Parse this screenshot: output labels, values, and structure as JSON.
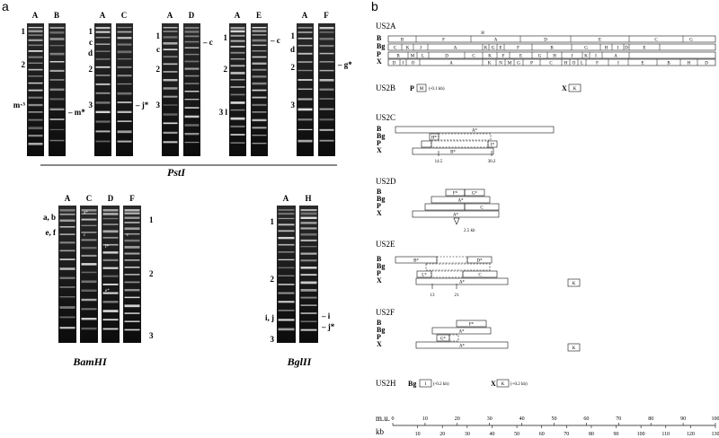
{
  "panel_a": {
    "letter": "a",
    "pst_gels": [
      {
        "lanes": [
          "A",
          "B"
        ],
        "left_marks": [
          "1",
          "2",
          "m·³"
        ],
        "right_marks": [
          "– m*"
        ]
      },
      {
        "lanes": [
          "A",
          "C"
        ],
        "left_marks": [
          "1",
          "c",
          "d",
          "2",
          "3"
        ],
        "right_marks": [
          "– j*"
        ]
      },
      {
        "lanes": [
          "A",
          "D"
        ],
        "left_marks": [
          "1",
          "c",
          "2",
          "3"
        ],
        "right_marks": [
          "– c"
        ]
      },
      {
        "lanes": [
          "A",
          "E"
        ],
        "left_marks": [
          "1",
          "2",
          "3 l"
        ],
        "right_marks": [
          "– c"
        ]
      },
      {
        "lanes": [
          "A",
          "F"
        ],
        "left_marks": [
          "1",
          "d",
          "2",
          "3"
        ],
        "right_marks": [
          "– g*"
        ]
      }
    ],
    "pst_label": "PstI",
    "bam_gel": {
      "lanes": [
        "A",
        "C",
        "D",
        "F"
      ],
      "left_marks": [
        "a, b",
        "e, f"
      ],
      "right_marks": [
        "1",
        "2",
        "3"
      ],
      "inner_marks": [
        "a*",
        "c",
        "c",
        "f*",
        "e*"
      ]
    },
    "bam_label": "BamHI",
    "bgl_gel": {
      "lanes": [
        "A",
        "H"
      ],
      "left_marks": [
        "1",
        "2",
        "i, j",
        "3"
      ],
      "right_marks": [
        "– i",
        "– j*"
      ]
    },
    "bgl_label": "BglII"
  },
  "panel_b": {
    "letter": "b",
    "us2a_title": "US2A",
    "rows": [
      "B",
      "Bg",
      "P",
      "X"
    ],
    "us2a": {
      "B": [
        "B",
        "F",
        "A",
        "D",
        "E",
        "C",
        "G"
      ],
      "H_mark": "H",
      "Bg": [
        "C",
        "K",
        "J",
        "A",
        "K",
        "G",
        "E",
        "F",
        "B",
        "G",
        "H",
        "I",
        "D",
        "E"
      ],
      "P": [
        "B",
        "M",
        "L",
        "D",
        "C",
        "K",
        "F",
        "E",
        "G",
        "H",
        "J",
        "K",
        "I",
        "A"
      ],
      "X": [
        "D",
        "J",
        "O",
        "A",
        "K",
        "N",
        "M",
        "G",
        "P",
        "C",
        "H",
        "O",
        "L",
        "F",
        "I",
        "E",
        "B",
        "H",
        "D"
      ]
    },
    "us2b": {
      "title": "US2B",
      "p_label": "P",
      "p_frag": "M",
      "p_note": "(-0.1 kb)",
      "x_label": "X",
      "x_frag": "K"
    },
    "us2c": {
      "title": "US2C",
      "frags": [
        "A*",
        "H*",
        "I*",
        "B*"
      ],
      "ticks": [
        "14.5",
        "30.2"
      ]
    },
    "us2d": {
      "title": "US2D",
      "frags": [
        "F*",
        "G*",
        "A*",
        "C",
        "A*"
      ],
      "note": "2.5 kb"
    },
    "us2e": {
      "title": "US2E",
      "frags": [
        "B*",
        "D*",
        "L*",
        "C",
        "A*",
        "K"
      ],
      "ticks": [
        "13",
        "21"
      ]
    },
    "us2f": {
      "title": "US2F",
      "frags": [
        "F*",
        "A*",
        "G*",
        "A*",
        "K"
      ]
    },
    "us2h": {
      "title": "US2H",
      "bg_label": "Bg",
      "bg_frag": "I",
      "bg_note": "(-0.2 kb)",
      "x_label": "X",
      "x_frag": "K",
      "x_note": "(+0.2 kb)"
    },
    "scale": {
      "mu_label": "m.u.",
      "mu_ticks": [
        "0",
        "10",
        "20",
        "30",
        "40",
        "50",
        "60",
        "70",
        "80",
        "90",
        "100"
      ],
      "kb_label": "kb",
      "kb_ticks": [
        "10",
        "20",
        "30",
        "40",
        "50",
        "60",
        "70",
        "80",
        "90",
        "100",
        "110",
        "120",
        "130"
      ]
    }
  },
  "colors": {
    "gel_bg": "#1a1a1a",
    "band": "#e8e8e8",
    "line": "#111111"
  }
}
